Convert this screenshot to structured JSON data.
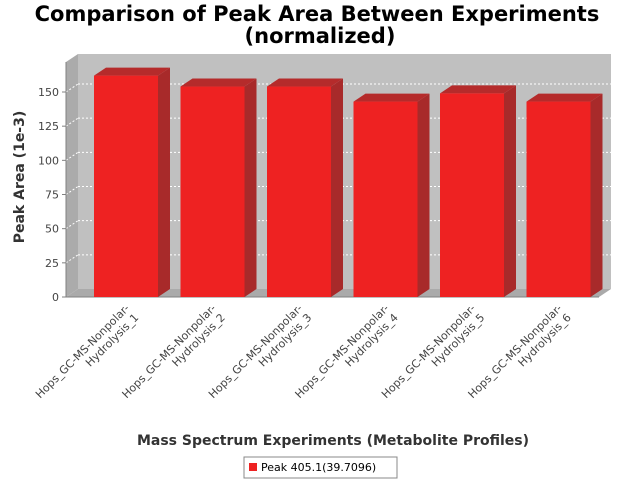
{
  "chart_data": {
    "type": "bar",
    "title_line1": "Comparison of Peak Area Between Experiments",
    "title_line2": "(normalized)",
    "xlabel": "Mass Spectrum Experiments (Metabolite Profiles)",
    "ylabel": "Peak Area (1e-3)",
    "ylim": [
      0,
      165
    ],
    "yticks": [
      0,
      25,
      50,
      75,
      100,
      125,
      150
    ],
    "grid": true,
    "legend_position": "bottom",
    "categories": [
      [
        "Hops_GC-MS-Nonpolar-",
        "Hydrolysis_1"
      ],
      [
        "Hops_GC-MS-Nonpolar-",
        "Hydrolysis_2"
      ],
      [
        "Hops_GC-MS-Nonpolar-",
        "Hydrolysis_3"
      ],
      [
        "Hops_GC-MS-Nonpolar-",
        "Hydrolysis_4"
      ],
      [
        "Hops_GC-MS-Nonpolar-",
        "Hydrolysis_5"
      ],
      [
        "Hops_GC-MS-Nonpolar-",
        "Hydrolysis_6"
      ]
    ],
    "series": [
      {
        "name": "Peak 405.1(39.7096)",
        "color": "#ee2222",
        "values": [
          162,
          154,
          154,
          143,
          149,
          143
        ]
      }
    ]
  }
}
